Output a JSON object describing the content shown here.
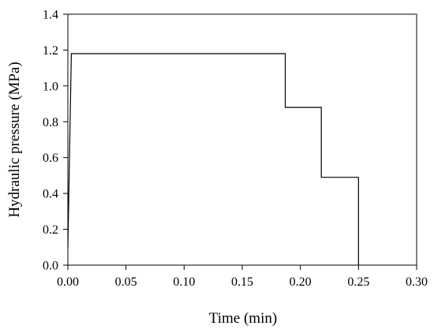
{
  "chart_data": {
    "type": "line",
    "title": "",
    "xlabel": "Time (min)",
    "ylabel": "Hydraulic pressure (MPa)",
    "xlim": [
      0.0,
      0.3
    ],
    "ylim": [
      0.0,
      1.4
    ],
    "xticks": [
      "0.00",
      "0.05",
      "0.10",
      "0.15",
      "0.20",
      "0.25",
      "0.30"
    ],
    "yticks": [
      "0.0",
      "0.2",
      "0.4",
      "0.6",
      "0.8",
      "1.0",
      "1.2",
      "1.4"
    ],
    "grid": false,
    "legend": "none",
    "series": [
      {
        "color": "#000000",
        "x": [
          0.0,
          0.003,
          0.003,
          0.187,
          0.187,
          0.218,
          0.218,
          0.25,
          0.25
        ],
        "y": [
          0.1,
          1.18,
          1.18,
          1.18,
          0.88,
          0.88,
          0.49,
          0.49,
          0.0
        ]
      }
    ]
  }
}
